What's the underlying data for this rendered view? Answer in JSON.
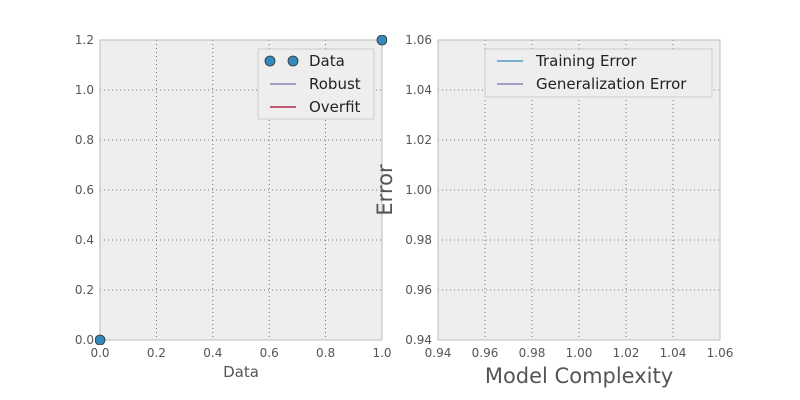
{
  "chart_data": [
    {
      "type": "scatter",
      "xlabel": "Data",
      "ylabel": "",
      "xlim": [
        0.0,
        1.0
      ],
      "ylim": [
        0.0,
        1.2
      ],
      "xticks": [
        "0.0",
        "0.2",
        "0.4",
        "0.6",
        "0.8",
        "1.0"
      ],
      "yticks": [
        "0.0",
        "0.2",
        "0.4",
        "0.6",
        "0.8",
        "1.0",
        "1.2"
      ],
      "xtick_values": [
        0.0,
        0.2,
        0.4,
        0.6,
        0.8,
        1.0
      ],
      "ytick_values": [
        0.0,
        0.2,
        0.4,
        0.6,
        0.8,
        1.0,
        1.2
      ],
      "grid": true,
      "legend_position": "top-right",
      "series": [
        {
          "name": "Data",
          "kind": "markers",
          "color": "#348abd",
          "x": [
            0.0,
            1.0
          ],
          "y": [
            0.0,
            1.2
          ]
        },
        {
          "name": "Robust",
          "kind": "line",
          "color": "#7a68a6",
          "x": [],
          "y": []
        },
        {
          "name": "Overfit",
          "kind": "line",
          "color": "#a60628",
          "x": [],
          "y": []
        }
      ]
    },
    {
      "type": "line",
      "xlabel": "Model Complexity",
      "ylabel": "Error",
      "xlim": [
        0.94,
        1.06
      ],
      "ylim": [
        0.94,
        1.06
      ],
      "xticks": [
        "0.94",
        "0.96",
        "0.98",
        "1.00",
        "1.02",
        "1.04",
        "1.06"
      ],
      "yticks": [
        "0.94",
        "0.96",
        "0.98",
        "1.00",
        "1.02",
        "1.04",
        "1.06"
      ],
      "xtick_values": [
        0.94,
        0.96,
        0.98,
        1.0,
        1.02,
        1.04,
        1.06
      ],
      "ytick_values": [
        0.94,
        0.96,
        0.98,
        1.0,
        1.02,
        1.04,
        1.06
      ],
      "grid": true,
      "legend_position": "top-right",
      "series": [
        {
          "name": "Training Error",
          "kind": "line",
          "color": "#348abd",
          "x": [],
          "y": []
        },
        {
          "name": "Generalization Error",
          "kind": "line",
          "color": "#7a68a6",
          "x": [],
          "y": []
        }
      ]
    }
  ],
  "style": {
    "axes_bg": "#eeeeee",
    "spine": "#bcbcbc",
    "grid": "#555555",
    "text": "#555555"
  }
}
